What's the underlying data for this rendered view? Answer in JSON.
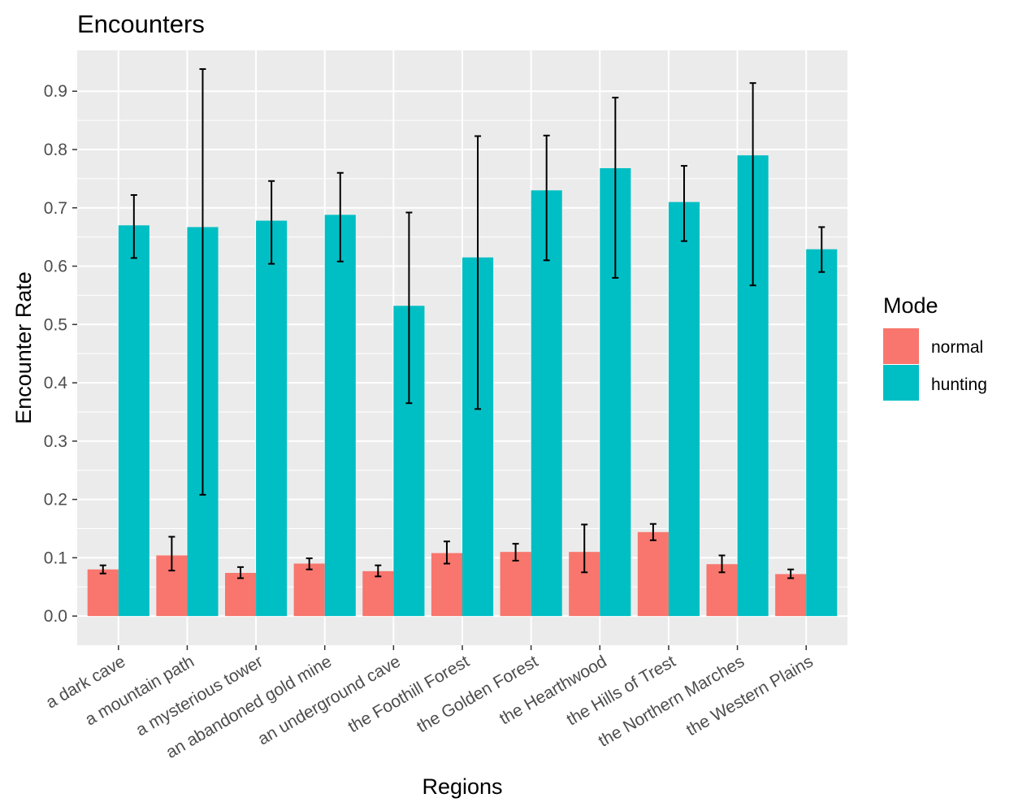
{
  "chart_data": {
    "type": "bar",
    "title": "Encounters",
    "xlabel": "Regions",
    "ylabel": "Encounter Rate",
    "ylim": [
      -0.05,
      0.97
    ],
    "yticks": [
      0.0,
      0.1,
      0.2,
      0.3,
      0.4,
      0.5,
      0.6,
      0.7,
      0.8,
      0.9
    ],
    "ytick_labels": [
      "0.0",
      "0.1",
      "0.2",
      "0.3",
      "0.4",
      "0.5",
      "0.6",
      "0.7",
      "0.8",
      "0.9"
    ],
    "grid": true,
    "legend": {
      "title": "Mode",
      "placement": "right"
    },
    "categories": [
      "a dark cave",
      "a mountain path",
      "a mysterious tower",
      "an abandoned gold mine",
      "an underground cave",
      "the Foothill Forest",
      "the Golden Forest",
      "the Hearthwood",
      "the Hills of Trest",
      "the Northern Marches",
      "the Western Plains"
    ],
    "series": [
      {
        "name": "normal",
        "color": "#F8766D",
        "values": [
          0.08,
          0.104,
          0.074,
          0.09,
          0.077,
          0.108,
          0.11,
          0.11,
          0.144,
          0.089,
          0.072
        ],
        "error_low": [
          0.073,
          0.078,
          0.065,
          0.08,
          0.068,
          0.09,
          0.095,
          0.075,
          0.13,
          0.075,
          0.065
        ],
        "error_high": [
          0.087,
          0.136,
          0.084,
          0.099,
          0.087,
          0.128,
          0.124,
          0.157,
          0.158,
          0.104,
          0.08
        ]
      },
      {
        "name": "hunting",
        "color": "#00BFC4",
        "values": [
          0.67,
          0.667,
          0.678,
          0.688,
          0.532,
          0.615,
          0.73,
          0.768,
          0.71,
          0.79,
          0.629
        ],
        "error_low": [
          0.614,
          0.208,
          0.604,
          0.608,
          0.365,
          0.355,
          0.61,
          0.58,
          0.643,
          0.567,
          0.59
        ],
        "error_high": [
          0.722,
          0.938,
          0.746,
          0.76,
          0.692,
          0.823,
          0.824,
          0.889,
          0.772,
          0.914,
          0.667
        ]
      }
    ]
  }
}
